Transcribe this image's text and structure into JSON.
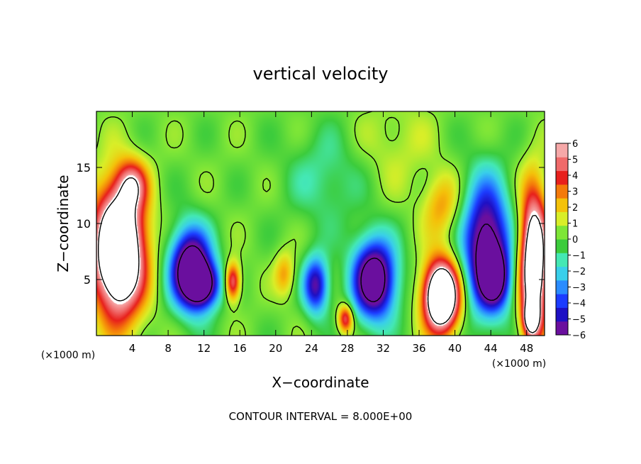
{
  "chart_data": {
    "type": "heatmap",
    "title": "vertical velocity",
    "xlabel": "X−coordinate",
    "ylabel": "Z−coordinate",
    "x_unit_label": "(×1000 m)",
    "y_unit_label": "(×1000 m)",
    "footer": "CONTOUR INTERVAL = 8.000E+00",
    "xlim": [
      0,
      50
    ],
    "ylim": [
      0,
      20
    ],
    "x_ticks": [
      4,
      8,
      12,
      16,
      20,
      24,
      28,
      32,
      36,
      40,
      44,
      48
    ],
    "y_ticks": [
      5,
      10,
      15
    ],
    "colorbar": {
      "range": [
        -6,
        6
      ],
      "ticks": [
        "6",
        "5",
        "4",
        "3",
        "2",
        "1",
        "0",
        "−1",
        "−2",
        "−3",
        "−4",
        "−5",
        "−6"
      ],
      "colors": [
        "#6a0f9e",
        "#1e10c4",
        "#1c3cff",
        "#2a8cff",
        "#39cfea",
        "#44e8b4",
        "#3ccc3c",
        "#7ee637",
        "#d9ee28",
        "#f4c20a",
        "#f47a0a",
        "#e8201c",
        "#f06a6a",
        "#f6a8a8"
      ]
    },
    "field": {
      "background": 0.2,
      "features": [
        {
          "x": 2.5,
          "z": 7.5,
          "amp": 12,
          "sx": 2.0,
          "sz": 4.0
        },
        {
          "x": 4.0,
          "z": 13.5,
          "amp": 4,
          "sx": 1.2,
          "sz": 1.5
        },
        {
          "x": 10.5,
          "z": 6.0,
          "amp": -9,
          "sx": 1.6,
          "sz": 2.5
        },
        {
          "x": 12.0,
          "z": 4.5,
          "amp": -6,
          "sx": 1.3,
          "sz": 1.4
        },
        {
          "x": 15.2,
          "z": 4.8,
          "amp": 5.5,
          "sx": 0.6,
          "sz": 1.2
        },
        {
          "x": 21.0,
          "z": 5.5,
          "amp": 2.5,
          "sx": 0.8,
          "sz": 1.4
        },
        {
          "x": 24.5,
          "z": 4.5,
          "amp": -6,
          "sx": 1.0,
          "sz": 1.8
        },
        {
          "x": 27.8,
          "z": 1.5,
          "amp": 5,
          "sx": 0.6,
          "sz": 0.9
        },
        {
          "x": 31.0,
          "z": 5.0,
          "amp": -9,
          "sx": 1.7,
          "sz": 2.5
        },
        {
          "x": 25.5,
          "z": 14.0,
          "amp": -1.5,
          "sx": 3.0,
          "sz": 3.0
        },
        {
          "x": 38.5,
          "z": 3.5,
          "amp": 12,
          "sx": 1.4,
          "sz": 2.2
        },
        {
          "x": 38.5,
          "z": 11.5,
          "amp": 2.5,
          "sx": 1.5,
          "sz": 2.0
        },
        {
          "x": 43.5,
          "z": 8.0,
          "amp": -8,
          "sx": 1.8,
          "sz": 4.0
        },
        {
          "x": 44.5,
          "z": 5.0,
          "amp": -5,
          "sx": 1.2,
          "sz": 1.8
        },
        {
          "x": 48.8,
          "z": 6.5,
          "amp": 10,
          "sx": 1.1,
          "sz": 4.5
        },
        {
          "x": 48.5,
          "z": 1.5,
          "amp": 6,
          "sx": 0.6,
          "sz": 1.0
        },
        {
          "x": 33.5,
          "z": 17.0,
          "amp": 1.0,
          "sx": 3.0,
          "sz": 3.0
        }
      ],
      "zero_contour_level": 0.6,
      "inner_contour_level": 6.5,
      "negative_contour_level": -6.5
    }
  }
}
